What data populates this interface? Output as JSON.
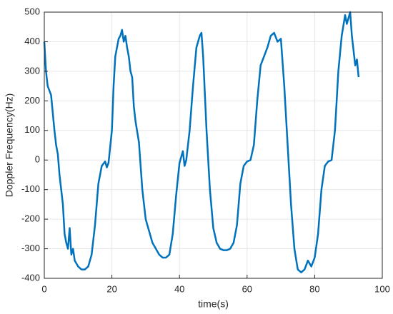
{
  "chart_data": {
    "type": "line",
    "xlabel": "time(s)",
    "ylabel": "Doppler Frequency(Hz)",
    "xlim": [
      0,
      100
    ],
    "xticks": [
      0,
      20,
      40,
      60,
      80,
      100
    ],
    "ylim": [
      -400,
      500
    ],
    "yticks": [
      -400,
      -300,
      -200,
      -100,
      0,
      100,
      200,
      300,
      400,
      500
    ],
    "grid": true,
    "series": [
      {
        "color": "#0072bd",
        "x": [
          0,
          0.5,
          1,
          2,
          3,
          3.5,
          4,
          4.5,
          5,
          5.5,
          6,
          6.5,
          7,
          7.5,
          8,
          8.5,
          9,
          10,
          11,
          12,
          13,
          14,
          15,
          16,
          17,
          18,
          18.5,
          19,
          20,
          20.5,
          21,
          22,
          22.5,
          23,
          23.5,
          24,
          24.5,
          25,
          25.5,
          26,
          26.5,
          27,
          28,
          29,
          30,
          31,
          32,
          33,
          34,
          35,
          36,
          37,
          38,
          39,
          40,
          41,
          41.5,
          42,
          43,
          44,
          45,
          46,
          46.5,
          47,
          48,
          49,
          50,
          51,
          52,
          53,
          54,
          55,
          56,
          57,
          58,
          59,
          60,
          61,
          62,
          63,
          64,
          65,
          66,
          67,
          68,
          69,
          70,
          71,
          72,
          73,
          74,
          75,
          76,
          77,
          78,
          79,
          80,
          81,
          82,
          83,
          84,
          85,
          86,
          87,
          88,
          89,
          89.5,
          90,
          90.5,
          91,
          92,
          92.5,
          93
        ],
        "values": [
          400,
          300,
          250,
          220,
          100,
          50,
          20,
          -50,
          -100,
          -150,
          -250,
          -280,
          -300,
          -230,
          -320,
          -300,
          -340,
          -360,
          -370,
          -370,
          -360,
          -320,
          -220,
          -80,
          -20,
          -5,
          -25,
          -10,
          100,
          250,
          350,
          410,
          420,
          440,
          400,
          420,
          380,
          350,
          300,
          280,
          180,
          130,
          60,
          -100,
          -200,
          -240,
          -280,
          -300,
          -320,
          -330,
          -330,
          -320,
          -250,
          -120,
          -10,
          30,
          -20,
          0,
          100,
          250,
          380,
          420,
          430,
          350,
          100,
          -100,
          -230,
          -280,
          -300,
          -305,
          -305,
          -300,
          -280,
          -220,
          -80,
          -20,
          -5,
          0,
          50,
          200,
          320,
          350,
          380,
          420,
          430,
          400,
          410,
          250,
          50,
          -150,
          -300,
          -370,
          -380,
          -370,
          -340,
          -360,
          -330,
          -250,
          -100,
          -20,
          -5,
          0,
          100,
          300,
          420,
          490,
          460,
          480,
          500,
          420,
          320,
          340,
          280
        ]
      }
    ]
  }
}
